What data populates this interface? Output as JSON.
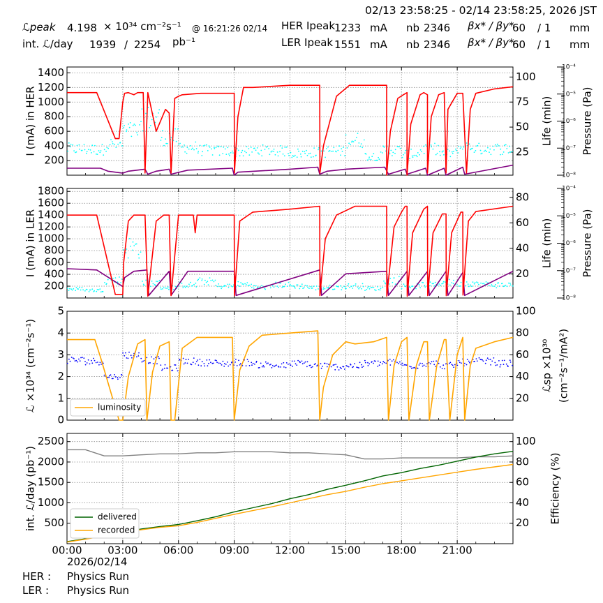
{
  "header": {
    "date_range": "02/13 23:58:25 - 02/14 23:58:25, 2026 JST",
    "lpeak_label": "ℒpeak",
    "lpeak_value": "4.198",
    "lpeak_unit": "× 10³⁴ cm⁻²s⁻¹",
    "lpeak_time": "@ 16:21:26 02/14",
    "intl_label": "int. ℒ/day",
    "intl_value1": "1939",
    "intl_sep": "/",
    "intl_value2": "2254",
    "intl_unit": "pb⁻¹",
    "her_label": "HER Ipeak",
    "her_value": "1233",
    "her_unit": "mA",
    "ler_label": "LER Ipeak",
    "ler_value": "1551",
    "ler_unit": "mA",
    "nb_label": "nb",
    "nb_her": "2346",
    "nb_ler": "2346",
    "beta_label": "βx* / βy*",
    "beta_her_x": "60",
    "beta_her_y": "/ 1",
    "beta_ler_x": "60",
    "beta_ler_y": "/ 1",
    "beta_unit": "mm"
  },
  "footer": {
    "date": "2026/02/14",
    "her_label": "HER :",
    "her_status": "Physics Run",
    "ler_label": "LER :",
    "ler_status": "Physics Run"
  },
  "colors": {
    "current": "#ff0000",
    "life": "#800080",
    "pressure": "#00ffff",
    "luminosity": "#ffa500",
    "specific": "#0000ff",
    "delivered": "#006400",
    "recorded": "#ffa500",
    "efficiency": "#808080"
  },
  "chart_data": [
    {
      "type": "line",
      "name": "her-panel",
      "ylabel": "I (mA) in HER",
      "y2label": "Life (min)",
      "y3label": "Pressure (Pa)",
      "ylim": [
        0,
        1480
      ],
      "yticks": [
        200,
        400,
        600,
        800,
        1000,
        1200,
        1400
      ],
      "y2lim": [
        2,
        110
      ],
      "y2ticks": [
        25,
        50,
        75,
        100
      ],
      "y3ticks": [
        "10⁻⁴",
        "10⁻⁵",
        "10⁻⁶",
        "10⁻⁷",
        "10⁻⁸"
      ],
      "xlim": [
        0,
        24
      ],
      "current_hours": [
        0,
        1.6,
        2.6,
        2.8,
        3.0,
        3.1,
        3.3,
        3.6,
        3.8,
        4.1,
        4.2,
        4.35,
        4.8,
        5.3,
        5.5,
        5.6,
        5.8,
        6.0,
        6.2,
        7.2,
        9.0,
        9.01,
        9.2,
        9.5,
        10.0,
        12.0,
        12.9,
        13.0,
        13.6,
        13.61,
        13.8,
        14.5,
        15.2,
        15.5,
        17.2,
        17.2,
        17.4,
        17.8,
        18.1,
        18.3,
        18.3,
        18.5,
        19.0,
        19.2,
        19.4,
        19.4,
        19.6,
        20.0,
        20.3,
        20.4,
        20.5,
        21.0,
        21.3,
        21.5,
        21.7,
        22.0,
        23.0,
        24.0
      ],
      "current_values": [
        1130,
        1130,
        500,
        500,
        1000,
        1120,
        1130,
        1100,
        1130,
        1130,
        30,
        1130,
        600,
        900,
        850,
        30,
        1050,
        1080,
        1100,
        1120,
        1120,
        30,
        800,
        1200,
        1200,
        1230,
        1230,
        1230,
        1230,
        30,
        400,
        1080,
        1230,
        1230,
        1230,
        0,
        600,
        1050,
        1100,
        1130,
        0,
        700,
        1100,
        1130,
        1100,
        30,
        800,
        1100,
        1130,
        30,
        900,
        1120,
        1120,
        30,
        900,
        1120,
        1180,
        1210
      ],
      "life_hours": [
        0,
        1.8,
        2.2,
        3.0,
        3.3,
        4.2,
        4.35,
        4.8,
        5.5,
        5.6,
        6.5,
        8.9,
        9.0,
        9.2,
        12.0,
        13.5,
        13.6,
        14.0,
        15.0,
        17.1,
        17.3,
        18.2,
        18.3,
        19.3,
        19.4,
        20.3,
        20.4,
        21.3,
        21.4,
        24.0
      ],
      "life_values": [
        9,
        9,
        6,
        4,
        6,
        8,
        3,
        6,
        8,
        3,
        7,
        9,
        2,
        5,
        8,
        10,
        3,
        6,
        8,
        10,
        3,
        8,
        3,
        9,
        2,
        9,
        2,
        10,
        3,
        12
      ],
      "pressure_note": "cyan scatter",
      "pressure_levels": [
        360,
        350,
        420,
        600,
        780,
        520,
        380,
        340,
        330,
        320,
        340,
        330,
        300,
        310,
        330,
        480,
        260,
        340,
        290,
        360,
        300,
        380,
        360,
        360
      ]
    },
    {
      "type": "line",
      "name": "ler-panel",
      "ylabel": "I (mA) in LER",
      "y2label": "Life (min)",
      "y3label": "Pressure (Pa)",
      "ylim": [
        0,
        1850
      ],
      "yticks": [
        200,
        400,
        600,
        800,
        1000,
        1200,
        1400,
        1600,
        1800
      ],
      "y2lim": [
        1,
        87
      ],
      "y2ticks": [
        20,
        40,
        60,
        80
      ],
      "y3ticks": [
        "10⁻⁴",
        "10⁻⁵",
        "10⁻⁶",
        "10⁻⁷",
        "10⁻⁸"
      ],
      "xlim": [
        0,
        24
      ],
      "current_hours": [
        0,
        1.6,
        2.6,
        3.0,
        3.05,
        3.3,
        3.6,
        4.0,
        4.2,
        4.35,
        4.8,
        5.2,
        5.5,
        5.6,
        6.0,
        6.8,
        6.9,
        7.0,
        9.0,
        9.01,
        9.3,
        10.0,
        12.0,
        13.6,
        13.61,
        13.9,
        14.5,
        15.5,
        17.2,
        17.21,
        17.6,
        18.0,
        18.2,
        18.3,
        18.31,
        18.6,
        19.2,
        19.4,
        19.41,
        19.7,
        20.2,
        20.4,
        20.41,
        20.7,
        21.2,
        21.3,
        21.31,
        21.6,
        22.0,
        24.0
      ],
      "current_values": [
        1400,
        1400,
        60,
        60,
        600,
        1300,
        1400,
        1400,
        1400,
        30,
        1300,
        1400,
        1400,
        40,
        1400,
        1400,
        1100,
        1400,
        1400,
        40,
        1300,
        1450,
        1500,
        1550,
        40,
        1000,
        1400,
        1550,
        1550,
        30,
        1200,
        1450,
        1550,
        1550,
        30,
        1100,
        1500,
        1550,
        40,
        1100,
        1420,
        1420,
        40,
        1100,
        1450,
        1450,
        50,
        1300,
        1460,
        1550
      ],
      "life_hours": [
        0,
        1.6,
        3.0,
        3.1,
        3.6,
        4.3,
        4.4,
        5.5,
        5.6,
        6.5,
        9.0,
        9.1,
        13.6,
        13.7,
        15.0,
        17.2,
        17.3,
        18.3,
        18.4,
        19.4,
        19.5,
        20.4,
        20.5,
        21.3,
        21.4,
        24.0
      ],
      "life_values": [
        24,
        23,
        10,
        17,
        22,
        23,
        3,
        22,
        3,
        22,
        22,
        3,
        23,
        3,
        20,
        22,
        3,
        22,
        3,
        22,
        3,
        22,
        3,
        21,
        3,
        22
      ],
      "pressure_levels": [
        150,
        130,
        300,
        850,
        250,
        180,
        220,
        280,
        200,
        230,
        180,
        220,
        200,
        170,
        180,
        200,
        160,
        300,
        200,
        220,
        260,
        250,
        230,
        220
      ]
    },
    {
      "type": "line",
      "name": "luminosity-panel",
      "ylabel": "ℒ ×10³⁴ (cm⁻²s⁻¹)",
      "y2label": "ℒsp ×10³⁰ (cm⁻²s⁻¹/mA²)",
      "ylim": [
        0,
        5
      ],
      "yticks": [
        0,
        1,
        2,
        3,
        4,
        5
      ],
      "y2lim": [
        0,
        100
      ],
      "y2ticks": [
        20,
        40,
        60,
        80,
        100
      ],
      "xlim": [
        0,
        24
      ],
      "legend": [
        "luminosity"
      ],
      "legend_position": "lower-left",
      "lum_hours": [
        0,
        1.5,
        1.8,
        2.8,
        3.0,
        3.3,
        3.8,
        4.2,
        4.3,
        4.6,
        5.0,
        5.5,
        5.6,
        5.8,
        6.2,
        7.0,
        8.9,
        9.0,
        9.3,
        9.8,
        10.5,
        12.0,
        13.5,
        13.6,
        13.8,
        14.3,
        15.0,
        15.5,
        16.5,
        17.2,
        17.3,
        17.6,
        18.0,
        18.3,
        18.4,
        18.8,
        19.2,
        19.4,
        19.5,
        19.9,
        20.3,
        20.4,
        20.6,
        21.0,
        21.3,
        21.4,
        21.7,
        22.0,
        23.0,
        24.0
      ],
      "lum_values": [
        3.7,
        3.7,
        2.9,
        0,
        0,
        2.0,
        3.5,
        3.7,
        0,
        2.2,
        3.4,
        3.6,
        0,
        0,
        3.3,
        3.8,
        3.8,
        0,
        2.3,
        3.4,
        3.9,
        4.0,
        4.1,
        0,
        1.5,
        3.0,
        3.6,
        3.5,
        3.6,
        3.8,
        0,
        2.5,
        3.6,
        3.8,
        0,
        2.5,
        3.6,
        3.6,
        0,
        2.5,
        3.7,
        3.7,
        0,
        3.0,
        3.8,
        0,
        2.5,
        3.3,
        3.6,
        3.8
      ],
      "sp_levels": [
        55,
        54,
        40,
        60,
        55,
        48,
        54,
        53,
        52,
        53,
        51,
        50,
        52,
        50,
        49,
        50,
        52,
        53,
        50,
        52,
        50,
        53,
        54,
        52
      ]
    },
    {
      "type": "line",
      "name": "integrated-panel",
      "ylabel": "int. ℒ/day (pb⁻¹)",
      "y2label": "Efficiency (%)",
      "ylim": [
        0,
        2700
      ],
      "yticks": [
        500,
        1000,
        1500,
        2000,
        2500
      ],
      "y2lim": [
        0,
        108
      ],
      "y2ticks": [
        20,
        40,
        60,
        80,
        100
      ],
      "xlim": [
        0,
        24
      ],
      "xticks": [
        "00:00",
        "03:00",
        "06:00",
        "09:00",
        "12:00",
        "15:00",
        "18:00",
        "21:00"
      ],
      "legend": [
        "delivered",
        "recorded"
      ],
      "legend_position": "lower-left",
      "x": [
        0,
        1,
        2,
        3,
        4,
        5,
        6,
        7,
        8,
        9,
        10,
        11,
        12,
        13,
        14,
        15,
        16,
        17,
        18,
        19,
        20,
        21,
        22,
        23,
        24
      ],
      "delivered": [
        50,
        120,
        200,
        280,
        360,
        420,
        470,
        560,
        660,
        780,
        880,
        980,
        1100,
        1200,
        1330,
        1430,
        1540,
        1660,
        1740,
        1840,
        1920,
        2020,
        2120,
        2200,
        2260
      ],
      "recorded": [
        40,
        110,
        190,
        270,
        340,
        400,
        440,
        520,
        620,
        720,
        810,
        900,
        1000,
        1100,
        1200,
        1280,
        1380,
        1470,
        1540,
        1610,
        1680,
        1750,
        1820,
        1880,
        1940
      ],
      "efficiency": [
        92,
        92,
        86,
        86,
        87,
        88,
        88,
        89,
        89,
        90,
        90,
        90,
        89,
        89,
        88,
        87,
        83,
        83,
        84,
        84,
        84,
        84,
        85,
        85,
        86
      ]
    }
  ]
}
